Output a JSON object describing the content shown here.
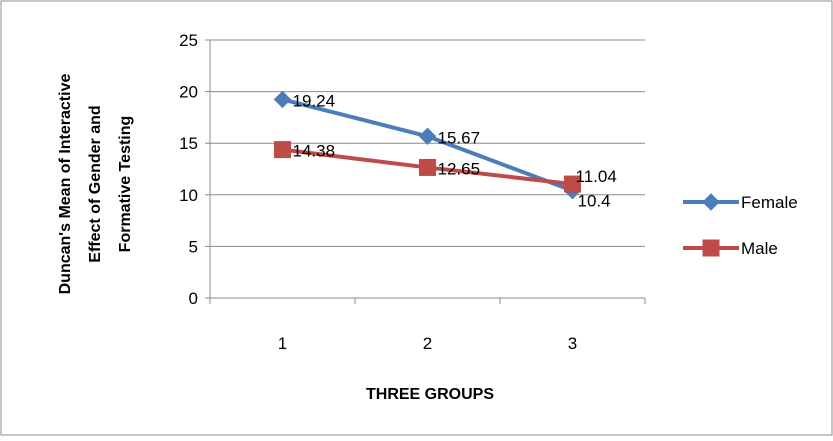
{
  "chart_data": {
    "type": "line",
    "categories": [
      "1",
      "2",
      "3"
    ],
    "series": [
      {
        "name": "Female",
        "values": [
          19.24,
          15.67,
          10.4
        ],
        "color": "#4a7ebb",
        "marker": "diamond"
      },
      {
        "name": "Male",
        "values": [
          14.38,
          12.65,
          11.04
        ],
        "color": "#be4b48",
        "marker": "square"
      }
    ],
    "data_labels": [
      [
        "19.24",
        "15.67",
        "10.4"
      ],
      [
        "14.38",
        "12.65",
        "11.04"
      ]
    ],
    "xlabel": "THREE GROUPS",
    "ylabel_lines": [
      "Duncan's Mean of Interactive",
      "Effect of Gender and",
      "Formative Testing"
    ],
    "ylim": [
      0,
      25
    ],
    "yticks": [
      "0",
      "5",
      "10",
      "15",
      "20",
      "25"
    ],
    "grid": true,
    "legend_position": "right"
  }
}
